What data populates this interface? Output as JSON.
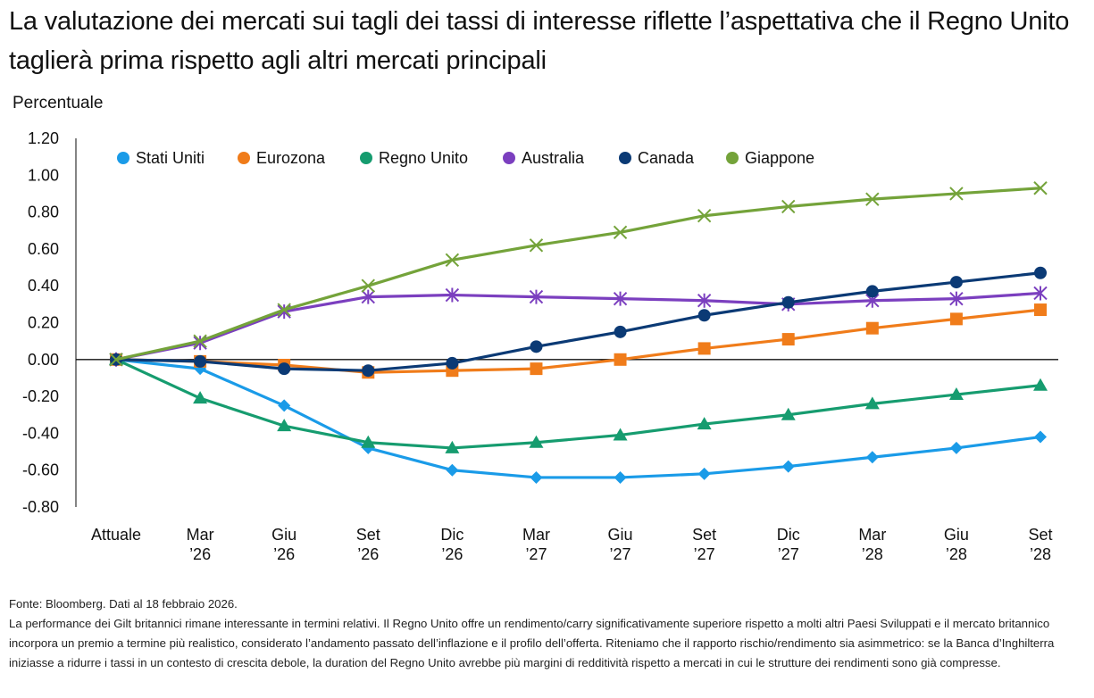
{
  "title": "La valutazione dei mercati sui tagli dei tassi di interesse riflette l’aspettativa che il Regno Unito taglierà prima rispetto agli altri mercati principali",
  "footer": {
    "source": "Fonte: Bloomberg. Dati al 18 febbraio 2026.",
    "note": "La performance dei Gilt britannici rimane interessante in termini relativi. Il Regno Unito offre un rendimento/carry significativamente superiore rispetto a molti altri Paesi Sviluppati e il mercato britannico incorpora un premio a termine più realistico, considerato l’andamento passato dell’inflazione e il profilo dell’offerta. Riteniamo che il rapporto rischio/rendimento sia asimmetrico: se la Banca d’Inghilterra iniziasse a ridurre i tassi in un contesto di crescita debole, la duration del Regno Unito avrebbe più margini di redditività rispetto a mercati in cui le strutture dei rendimenti sono già compresse."
  },
  "chart_data": {
    "type": "line",
    "ylabel": "Percentuale",
    "ylim": [
      -0.8,
      1.2
    ],
    "yticks": [
      "1.20",
      "1.00",
      "0.80",
      "0.60",
      "0.40",
      "0.20",
      "0.00",
      "-0.20",
      "-0.40",
      "-0.60",
      "-0.80"
    ],
    "ytick_values": [
      1.2,
      1.0,
      0.8,
      0.6,
      0.4,
      0.2,
      0.0,
      -0.2,
      -0.4,
      -0.6,
      -0.8
    ],
    "categories": [
      [
        "Attuale"
      ],
      [
        "Mar",
        "’26"
      ],
      [
        "Giu",
        "’26"
      ],
      [
        "Set",
        "’26"
      ],
      [
        "Dic",
        "’26"
      ],
      [
        "Mar",
        "’27"
      ],
      [
        "Giu",
        "’27"
      ],
      [
        "Set",
        "’27"
      ],
      [
        "Dic",
        "’27"
      ],
      [
        "Mar",
        "’28"
      ],
      [
        "Giu",
        "’28"
      ],
      [
        "Set",
        "’28"
      ]
    ],
    "legend_position": "top",
    "series": [
      {
        "name": "Stati Uniti",
        "color": "#1a9be8",
        "marker": "diamond",
        "values": [
          0.0,
          -0.05,
          -0.25,
          -0.48,
          -0.6,
          -0.64,
          -0.64,
          -0.62,
          -0.58,
          -0.53,
          -0.48,
          -0.42
        ]
      },
      {
        "name": "Eurozona",
        "color": "#f07c1a",
        "marker": "square",
        "values": [
          0.0,
          -0.01,
          -0.03,
          -0.07,
          -0.06,
          -0.05,
          0.0,
          0.06,
          0.11,
          0.17,
          0.22,
          0.27
        ]
      },
      {
        "name": "Regno Unito",
        "color": "#169c6f",
        "marker": "triangle",
        "values": [
          0.0,
          -0.21,
          -0.36,
          -0.45,
          -0.48,
          -0.45,
          -0.41,
          -0.35,
          -0.3,
          -0.24,
          -0.19,
          -0.14
        ]
      },
      {
        "name": "Australia",
        "color": "#7b3fbf",
        "marker": "asterisk",
        "values": [
          0.0,
          0.09,
          0.26,
          0.34,
          0.35,
          0.34,
          0.33,
          0.32,
          0.3,
          0.32,
          0.33,
          0.36
        ]
      },
      {
        "name": "Canada",
        "color": "#0b3a75",
        "marker": "circle",
        "values": [
          0.0,
          -0.01,
          -0.05,
          -0.06,
          -0.02,
          0.07,
          0.15,
          0.24,
          0.31,
          0.37,
          0.42,
          0.47
        ]
      },
      {
        "name": "Giappone",
        "color": "#74a33a",
        "marker": "x",
        "values": [
          0.0,
          0.1,
          0.27,
          0.4,
          0.54,
          0.62,
          0.69,
          0.78,
          0.83,
          0.87,
          0.9,
          0.93
        ]
      }
    ]
  }
}
